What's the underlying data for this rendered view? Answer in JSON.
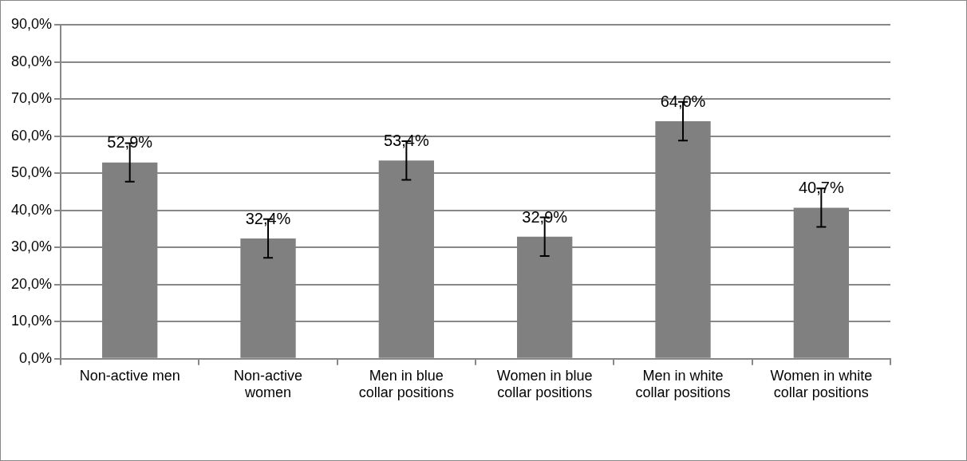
{
  "chart_data": {
    "type": "bar",
    "categories": [
      "Non-active men",
      "Non-active women",
      "Men in blue collar positions",
      "Women in blue collar positions",
      "Men in white collar positions",
      "Women in white collar positions"
    ],
    "values": [
      52.9,
      32.4,
      53.4,
      32.9,
      64.0,
      40.7
    ],
    "errors": [
      5.2,
      5.2,
      5.2,
      5.2,
      5.2,
      5.2
    ],
    "value_labels": [
      "52,9%",
      "32,4%",
      "53,4%",
      "32,9%",
      "64,0%",
      "40,7%"
    ],
    "color": "#808080",
    "ylim": [
      0,
      90
    ],
    "yticks": [
      {
        "value": 0,
        "label": "0,0%"
      },
      {
        "value": 10,
        "label": "10,0%"
      },
      {
        "value": 20,
        "label": "20,0%"
      },
      {
        "value": 30,
        "label": "30,0%"
      },
      {
        "value": 40,
        "label": "40,0%"
      },
      {
        "value": 50,
        "label": "50,0%"
      },
      {
        "value": 60,
        "label": "60,0%"
      },
      {
        "value": 70,
        "label": "70,0%"
      },
      {
        "value": 80,
        "label": "80,0%"
      },
      {
        "value": 90,
        "label": "90,0%"
      }
    ],
    "grid": "y",
    "legend": false
  }
}
